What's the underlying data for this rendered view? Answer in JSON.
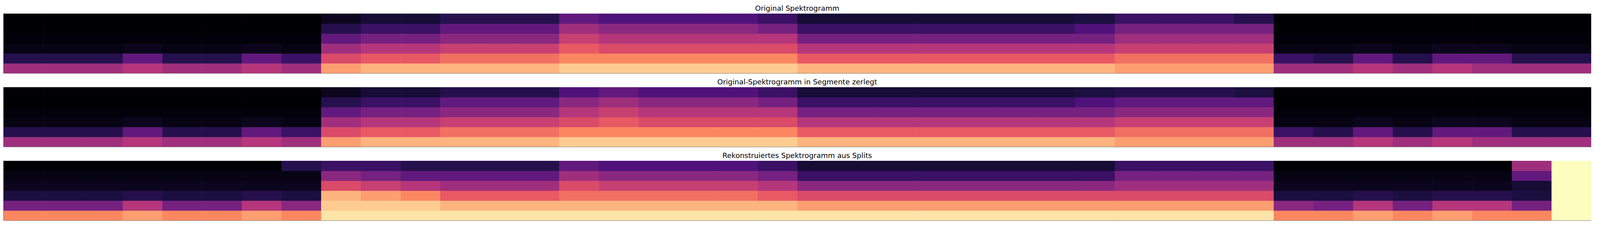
{
  "chart_data": [
    {
      "type": "heatmap",
      "title": "Original Spektrogramm",
      "xlim": [
        0,
        40
      ],
      "ylim": [
        0,
        6
      ],
      "zlim": [
        0,
        1
      ],
      "tick_labels": false,
      "cells": [
        [
          0.45,
          0.45,
          0.45,
          0.5,
          0.45,
          0.45,
          0.5,
          0.45,
          0.8,
          0.85,
          0.85,
          0.85,
          0.85,
          0.85,
          0.9,
          0.9,
          0.9,
          0.9,
          0.9,
          0.9,
          0.85,
          0.85,
          0.85,
          0.85,
          0.85,
          0.85,
          0.85,
          0.85,
          0.8,
          0.8,
          0.8,
          0.8,
          0.45,
          0.45,
          0.5,
          0.45,
          0.5,
          0.45,
          0.45,
          0.45
        ],
        [
          0.15,
          0.15,
          0.15,
          0.3,
          0.15,
          0.15,
          0.3,
          0.2,
          0.6,
          0.65,
          0.65,
          0.7,
          0.7,
          0.7,
          0.75,
          0.75,
          0.75,
          0.75,
          0.75,
          0.75,
          0.65,
          0.65,
          0.65,
          0.65,
          0.65,
          0.65,
          0.65,
          0.65,
          0.7,
          0.7,
          0.7,
          0.7,
          0.2,
          0.15,
          0.3,
          0.15,
          0.3,
          0.3,
          0.15,
          0.15
        ],
        [
          0.03,
          0.03,
          0.03,
          0.05,
          0.03,
          0.03,
          0.05,
          0.03,
          0.45,
          0.5,
          0.5,
          0.55,
          0.55,
          0.55,
          0.65,
          0.6,
          0.6,
          0.6,
          0.6,
          0.6,
          0.5,
          0.5,
          0.5,
          0.5,
          0.5,
          0.5,
          0.5,
          0.5,
          0.55,
          0.55,
          0.55,
          0.55,
          0.03,
          0.03,
          0.05,
          0.03,
          0.05,
          0.05,
          0.03,
          0.03
        ],
        [
          0.01,
          0.01,
          0.01,
          0.01,
          0.01,
          0.01,
          0.01,
          0.01,
          0.3,
          0.35,
          0.35,
          0.4,
          0.4,
          0.4,
          0.55,
          0.5,
          0.5,
          0.5,
          0.5,
          0.5,
          0.35,
          0.35,
          0.35,
          0.35,
          0.35,
          0.35,
          0.35,
          0.35,
          0.45,
          0.45,
          0.45,
          0.45,
          0.01,
          0.01,
          0.01,
          0.01,
          0.01,
          0.01,
          0.01,
          0.01
        ],
        [
          0,
          0,
          0,
          0,
          0,
          0,
          0,
          0,
          0.15,
          0.2,
          0.2,
          0.3,
          0.3,
          0.3,
          0.45,
          0.4,
          0.4,
          0.4,
          0.4,
          0.35,
          0.2,
          0.2,
          0.2,
          0.2,
          0.2,
          0.2,
          0.2,
          0.25,
          0.35,
          0.35,
          0.35,
          0.35,
          0,
          0,
          0,
          0,
          0,
          0,
          0,
          0
        ],
        [
          0,
          0,
          0,
          0,
          0,
          0,
          0,
          0,
          0.05,
          0.1,
          0.1,
          0.15,
          0.15,
          0.15,
          0.3,
          0.25,
          0.25,
          0.25,
          0.25,
          0.2,
          0.1,
          0.1,
          0.1,
          0.1,
          0.1,
          0.1,
          0.1,
          0.12,
          0.2,
          0.2,
          0.2,
          0.15,
          0,
          0,
          0,
          0,
          0,
          0,
          0,
          0
        ]
      ]
    },
    {
      "type": "heatmap",
      "title": "Original-Spektrogramm in Segmente zerlegt",
      "xlim": [
        0,
        40
      ],
      "ylim": [
        0,
        6
      ],
      "zlim": [
        0,
        1
      ],
      "tick_labels": false,
      "cells": [
        [
          0.45,
          0.45,
          0.45,
          0.5,
          0.45,
          0.45,
          0.5,
          0.45,
          0.8,
          0.85,
          0.85,
          0.85,
          0.85,
          0.85,
          0.9,
          0.9,
          0.9,
          0.9,
          0.9,
          0.9,
          0.85,
          0.85,
          0.85,
          0.85,
          0.85,
          0.85,
          0.85,
          0.85,
          0.8,
          0.8,
          0.8,
          0.8,
          0.45,
          0.45,
          0.5,
          0.45,
          0.5,
          0.45,
          0.45,
          0.45
        ],
        [
          0.15,
          0.15,
          0.15,
          0.3,
          0.15,
          0.15,
          0.3,
          0.2,
          0.6,
          0.65,
          0.65,
          0.7,
          0.7,
          0.7,
          0.75,
          0.75,
          0.75,
          0.75,
          0.75,
          0.75,
          0.65,
          0.65,
          0.65,
          0.65,
          0.65,
          0.65,
          0.65,
          0.65,
          0.7,
          0.7,
          0.7,
          0.7,
          0.2,
          0.15,
          0.3,
          0.15,
          0.3,
          0.3,
          0.15,
          0.15
        ],
        [
          0.03,
          0.03,
          0.03,
          0.05,
          0.03,
          0.03,
          0.05,
          0.03,
          0.45,
          0.5,
          0.5,
          0.55,
          0.55,
          0.55,
          0.6,
          0.65,
          0.6,
          0.6,
          0.6,
          0.6,
          0.5,
          0.5,
          0.5,
          0.5,
          0.5,
          0.5,
          0.5,
          0.5,
          0.55,
          0.55,
          0.55,
          0.55,
          0.03,
          0.03,
          0.05,
          0.03,
          0.05,
          0.05,
          0.03,
          0.03
        ],
        [
          0.01,
          0.01,
          0.01,
          0.01,
          0.01,
          0.01,
          0.01,
          0.01,
          0.3,
          0.35,
          0.35,
          0.4,
          0.4,
          0.4,
          0.5,
          0.55,
          0.5,
          0.5,
          0.5,
          0.5,
          0.35,
          0.35,
          0.35,
          0.35,
          0.35,
          0.35,
          0.35,
          0.35,
          0.4,
          0.4,
          0.4,
          0.4,
          0.01,
          0.01,
          0.01,
          0.01,
          0.01,
          0.01,
          0.01,
          0.01
        ],
        [
          0,
          0,
          0,
          0,
          0,
          0,
          0,
          0,
          0.15,
          0.2,
          0.2,
          0.3,
          0.3,
          0.3,
          0.4,
          0.45,
          0.4,
          0.4,
          0.4,
          0.35,
          0.2,
          0.2,
          0.2,
          0.2,
          0.2,
          0.2,
          0.2,
          0.25,
          0.3,
          0.3,
          0.3,
          0.3,
          0,
          0,
          0,
          0,
          0,
          0,
          0,
          0
        ],
        [
          0,
          0,
          0,
          0,
          0,
          0,
          0,
          0,
          0.05,
          0.1,
          0.1,
          0.15,
          0.15,
          0.15,
          0.25,
          0.3,
          0.25,
          0.25,
          0.25,
          0.2,
          0.1,
          0.1,
          0.1,
          0.1,
          0.1,
          0.1,
          0.1,
          0.12,
          0.15,
          0.15,
          0.15,
          0.12,
          0,
          0,
          0,
          0,
          0,
          0,
          0,
          0
        ]
      ]
    },
    {
      "type": "heatmap",
      "title": "Rekonstruiertes Spektrogramm aus Splits",
      "xlim": [
        0,
        40
      ],
      "ylim": [
        0,
        6
      ],
      "zlim": [
        0,
        1
      ],
      "tick_labels": false,
      "cells": [
        [
          0.75,
          0.75,
          0.75,
          0.8,
          0.75,
          0.75,
          0.8,
          0.75,
          0.95,
          0.95,
          0.95,
          0.95,
          0.95,
          0.95,
          0.95,
          0.95,
          0.95,
          0.95,
          0.95,
          0.95,
          0.95,
          0.95,
          0.95,
          0.95,
          0.95,
          0.95,
          0.95,
          0.95,
          0.95,
          0.95,
          0.95,
          0.95,
          0.75,
          0.75,
          0.8,
          0.75,
          0.8,
          0.75,
          0.75,
          1.0
        ],
        [
          0.35,
          0.35,
          0.35,
          0.5,
          0.35,
          0.35,
          0.5,
          0.4,
          0.9,
          0.9,
          0.9,
          0.85,
          0.85,
          0.85,
          0.85,
          0.85,
          0.85,
          0.85,
          0.85,
          0.85,
          0.8,
          0.8,
          0.8,
          0.8,
          0.8,
          0.8,
          0.8,
          0.8,
          0.8,
          0.8,
          0.8,
          0.8,
          0.4,
          0.35,
          0.5,
          0.35,
          0.5,
          0.5,
          0.35,
          1.0
        ],
        [
          0.12,
          0.12,
          0.12,
          0.15,
          0.12,
          0.12,
          0.15,
          0.12,
          0.85,
          0.8,
          0.75,
          0.65,
          0.65,
          0.65,
          0.7,
          0.7,
          0.7,
          0.7,
          0.7,
          0.65,
          0.6,
          0.6,
          0.6,
          0.6,
          0.6,
          0.6,
          0.6,
          0.6,
          0.6,
          0.6,
          0.6,
          0.6,
          0.12,
          0.12,
          0.15,
          0.12,
          0.15,
          0.15,
          0.12,
          1.0
        ],
        [
          0.05,
          0.05,
          0.05,
          0.05,
          0.05,
          0.05,
          0.05,
          0.05,
          0.6,
          0.55,
          0.5,
          0.45,
          0.45,
          0.45,
          0.6,
          0.55,
          0.55,
          0.55,
          0.55,
          0.5,
          0.4,
          0.4,
          0.4,
          0.4,
          0.4,
          0.4,
          0.4,
          0.4,
          0.45,
          0.45,
          0.45,
          0.45,
          0.05,
          0.05,
          0.05,
          0.05,
          0.05,
          0.05,
          0.1,
          1.0
        ],
        [
          0.03,
          0.03,
          0.03,
          0.03,
          0.03,
          0.03,
          0.03,
          0.03,
          0.4,
          0.35,
          0.3,
          0.3,
          0.3,
          0.3,
          0.45,
          0.4,
          0.4,
          0.4,
          0.4,
          0.35,
          0.2,
          0.2,
          0.2,
          0.2,
          0.2,
          0.2,
          0.2,
          0.2,
          0.35,
          0.35,
          0.35,
          0.35,
          0.03,
          0.03,
          0.03,
          0.03,
          0.03,
          0.03,
          0.3,
          1.0
        ],
        [
          0,
          0,
          0,
          0,
          0,
          0,
          0,
          0.15,
          0.2,
          0.2,
          0.15,
          0.15,
          0.15,
          0.15,
          0.3,
          0.25,
          0.25,
          0.25,
          0.25,
          0.2,
          0.1,
          0.1,
          0.1,
          0.1,
          0.1,
          0.1,
          0.1,
          0.1,
          0.2,
          0.2,
          0.2,
          0.2,
          0,
          0,
          0,
          0,
          0,
          0,
          0.45,
          1.0
        ]
      ]
    }
  ]
}
